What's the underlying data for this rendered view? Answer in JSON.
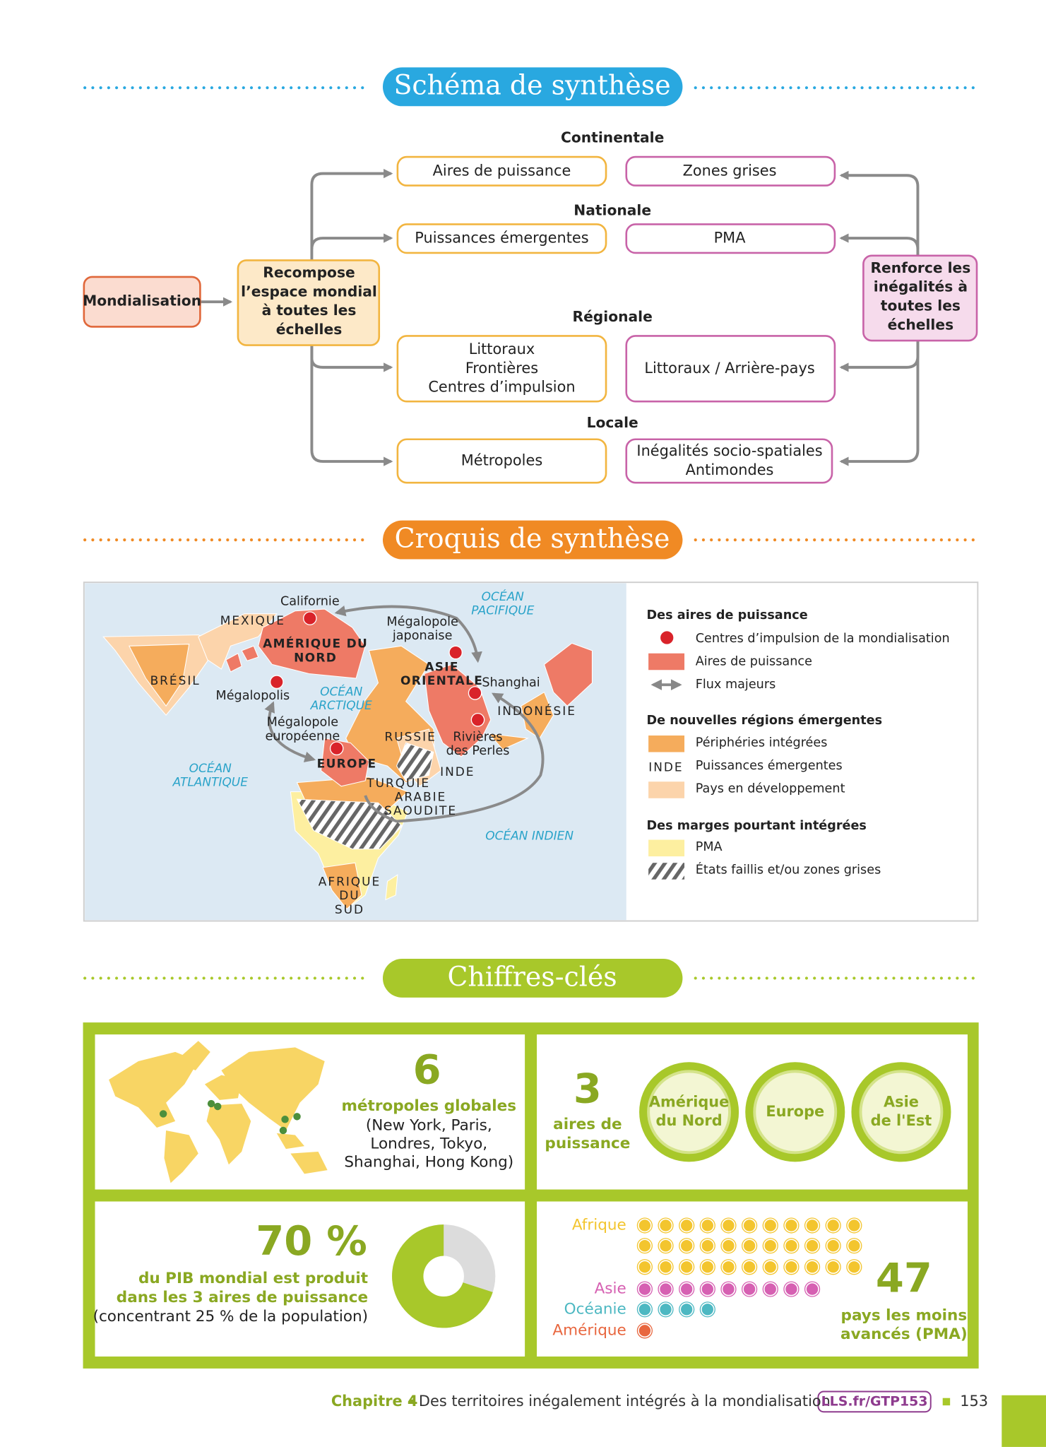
{
  "schema": {
    "title": "Schéma de synthèse",
    "source": "Mondialisation",
    "recompose": [
      "Recompose",
      "l’espace mondial",
      "à toutes les",
      "échelles"
    ],
    "renforce": [
      "Renforce les",
      "inégalités à",
      "toutes les",
      "échelles"
    ],
    "levels": [
      {
        "name": "Continentale",
        "left": [
          "Aires de puissance"
        ],
        "right": [
          "Zones grises"
        ]
      },
      {
        "name": "Nationale",
        "left": [
          "Puissances émergentes"
        ],
        "right": [
          "PMA"
        ]
      },
      {
        "name": "Régionale",
        "left": [
          "Littoraux",
          "Frontières",
          "Centres d’impulsion"
        ],
        "right": [
          "Littoraux / Arrière-pays"
        ]
      },
      {
        "name": "Locale",
        "left": [
          "Métropoles"
        ],
        "right": [
          "Inégalités socio-spatiales",
          "Antimondes"
        ]
      }
    ]
  },
  "croquis": {
    "title": "Croquis de synthèse",
    "map_labels": [
      [
        "Californie"
      ],
      [
        "MEXIQUE"
      ],
      [
        "AMÉRIQUE DU",
        "NORD"
      ],
      [
        "Mégalopole",
        "japonaise"
      ],
      [
        "OCÉAN",
        "PACIFIQUE"
      ],
      [
        "BRÉSIL"
      ],
      [
        "Mégalopolis"
      ],
      [
        "OCÉAN",
        "ARCTIQUE"
      ],
      [
        "ASIE",
        "ORIENTALE"
      ],
      [
        "Shanghai"
      ],
      [
        "INDONÉSIE"
      ],
      [
        "Mégalopole",
        "européenne"
      ],
      [
        "RUSSIE"
      ],
      [
        "Rivières",
        "des Perles"
      ],
      [
        "EUROPE"
      ],
      [
        "OCÉAN",
        "ATLANTIQUE"
      ],
      [
        "INDE"
      ],
      [
        "TURQUIE"
      ],
      [
        "ARABIE",
        "SAOUDITE"
      ],
      [
        "OCÉAN INDIEN"
      ],
      [
        "AFRIQUE",
        "DU",
        "SUD"
      ]
    ],
    "legend": [
      {
        "title": "Des aires de puissance",
        "items": [
          "Centres d’impulsion de la mondialisation",
          "Aires de puissance",
          "Flux majeurs"
        ]
      },
      {
        "title": "De nouvelles régions émergentes",
        "items": [
          "Périphéries intégrées",
          "Puissances émergentes",
          "Pays en développement"
        ],
        "sample_label": "INDE"
      },
      {
        "title": "Des marges pourtant intégrées",
        "items": [
          "PMA",
          "États faillis et/ou zones  grises"
        ]
      }
    ]
  },
  "chiffres": {
    "title": "Chiffres-clés",
    "metropoles": {
      "value": 6,
      "caption": "métropoles globales",
      "detail": [
        "(New York, Paris,",
        "Londres, Tokyo,",
        "Shanghai, Hong Kong)"
      ]
    },
    "aires": {
      "value": 3,
      "caption": [
        "aires de",
        "puissance"
      ],
      "circles": [
        [
          "Amérique",
          "du Nord"
        ],
        [
          "Europe"
        ],
        [
          "Asie",
          "de l'Est"
        ]
      ]
    },
    "pib": {
      "value": 70,
      "label": "70 %",
      "caption": [
        "du PIB mondial est produit",
        "dans les 3 aires de puissance"
      ],
      "detail": "(concentrant 25 % de la population)"
    },
    "pma": {
      "value": 47,
      "caption": [
        "pays les moins",
        "avancés (PMA)"
      ],
      "groups": [
        {
          "name": "Afrique",
          "count": 33,
          "color": "#f3c52e"
        },
        {
          "name": "Asie",
          "count": 9,
          "color": "#d660b2"
        },
        {
          "name": "Océanie",
          "count": 4,
          "color": "#4db8c2"
        },
        {
          "name": "Amérique",
          "count": 1,
          "color": "#e8663e"
        }
      ]
    }
  },
  "footer": {
    "chapter": "Chapitre 4",
    "title": "Des territoires inégalement intégrés à la mondialisation",
    "link": "LLS.fr/GTP153",
    "page": 153
  }
}
